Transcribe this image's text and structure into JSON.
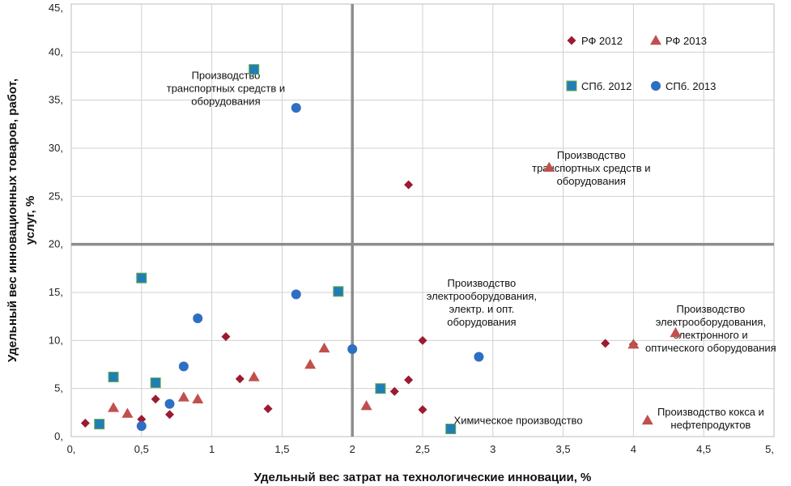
{
  "chart_data": {
    "type": "scatter",
    "xlabel": "Удельный вес затрат на технологические инновации, %",
    "ylabel": "Удельный вес инновационных товаров, работ, услуг, %",
    "xlim": [
      0,
      5
    ],
    "ylim": [
      0,
      45
    ],
    "x_ticks": [
      "0,",
      "0,5",
      "1",
      "1,5",
      "2",
      "2,5",
      "3",
      "3,5",
      "4",
      "4,5",
      "5,"
    ],
    "y_ticks": [
      "0,",
      "5,",
      "10,",
      "15,",
      "20,",
      "25,",
      "30,",
      "35,",
      "40,",
      "45,"
    ],
    "grid": true,
    "reference_lines": {
      "x": 2,
      "y": 20
    },
    "legend_position": "top-right",
    "series": [
      {
        "name": "РФ 2012",
        "marker": "diamond",
        "color": "#9b1b30",
        "points": [
          [
            0.1,
            1.4
          ],
          [
            0.5,
            1.8
          ],
          [
            0.6,
            3.9
          ],
          [
            0.7,
            2.3
          ],
          [
            1.1,
            10.4
          ],
          [
            1.2,
            6.0
          ],
          [
            1.4,
            2.9
          ],
          [
            2.3,
            4.7
          ],
          [
            2.4,
            5.9
          ],
          [
            2.4,
            26.2
          ],
          [
            2.5,
            10.0
          ],
          [
            2.5,
            2.8
          ],
          [
            3.8,
            9.7
          ],
          [
            4.0,
            9.6
          ]
        ]
      },
      {
        "name": "РФ 2013",
        "marker": "triangle",
        "color": "#c0504d",
        "points": [
          [
            0.3,
            3.0
          ],
          [
            0.4,
            2.4
          ],
          [
            0.8,
            4.1
          ],
          [
            0.9,
            3.9
          ],
          [
            1.3,
            6.2
          ],
          [
            1.7,
            7.5
          ],
          [
            1.8,
            9.2
          ],
          [
            2.1,
            3.2
          ],
          [
            3.4,
            28.0
          ],
          [
            4.0,
            9.6
          ],
          [
            4.3,
            10.8
          ],
          [
            4.1,
            1.7
          ]
        ]
      },
      {
        "name": "СПб. 2012",
        "marker": "square",
        "color": "#1f7fb5",
        "points": [
          [
            0.2,
            1.3
          ],
          [
            0.3,
            6.2
          ],
          [
            0.5,
            16.5
          ],
          [
            0.6,
            5.6
          ],
          [
            1.3,
            38.2
          ],
          [
            1.9,
            15.1
          ],
          [
            2.2,
            5.0
          ],
          [
            2.7,
            0.8
          ]
        ]
      },
      {
        "name": "СПб. 2013",
        "marker": "circle",
        "color": "#2e6fc4",
        "points": [
          [
            0.5,
            1.1
          ],
          [
            0.7,
            3.4
          ],
          [
            0.8,
            7.3
          ],
          [
            0.9,
            12.3
          ],
          [
            1.6,
            34.2
          ],
          [
            1.6,
            14.8
          ],
          [
            2.0,
            9.1
          ],
          [
            2.9,
            8.3
          ]
        ]
      }
    ],
    "annotations": [
      {
        "lines": [
          "Производство",
          "транспортных средств и",
          "оборудования"
        ],
        "x": 1.1,
        "y": 37.2
      },
      {
        "lines": [
          "Производство",
          "транспортных средств и",
          "оборудования"
        ],
        "x": 3.7,
        "y": 28.9
      },
      {
        "lines": [
          "Производство",
          "электрооборудования,",
          "электр. и опт.",
          "оборудования"
        ],
        "x": 2.92,
        "y": 15.6
      },
      {
        "lines": [
          "Производство",
          "электрооборудования,",
          "электронного и",
          "оптического оборудования"
        ],
        "x": 4.55,
        "y": 12.9
      },
      {
        "lines": [
          "Производство кокса и",
          "нефтепродуктов"
        ],
        "x": 4.55,
        "y": 2.2
      },
      {
        "lines": [
          "Химическое производство"
        ],
        "x": 3.18,
        "y": 1.3
      }
    ]
  }
}
